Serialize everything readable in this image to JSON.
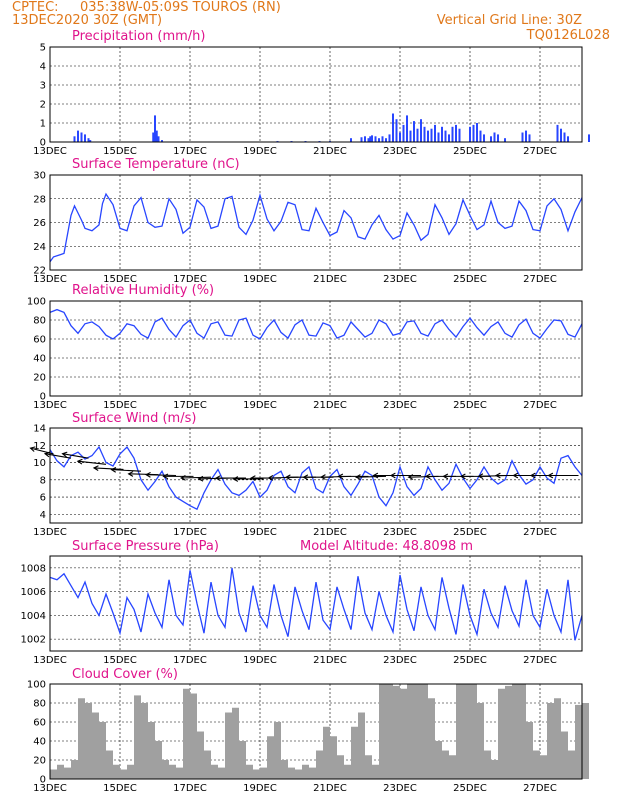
{
  "header": {
    "source": "CPTEC:",
    "location": "035:38W-05:09S   TOUROS (RN)",
    "datetime": "13DEC2020 30Z (GMT)",
    "vertical_grid": "Vertical Grid Line: 30Z",
    "code": "TQ0126L028"
  },
  "x_labels": [
    "13DEC",
    "15DEC",
    "17DEC",
    "19DEC",
    "21DEC",
    "23DEC",
    "25DEC",
    "27DEC"
  ],
  "chart_data": [
    {
      "id": "precip",
      "type": "bar",
      "title": "Precipitation (mm/h)",
      "ylim": [
        0,
        5
      ],
      "yticks": [
        0,
        1,
        2,
        3,
        4,
        5
      ],
      "color": "#2846ff",
      "series": [
        {
          "x": [
            0.7,
            0.8,
            0.9,
            1.0,
            1.1,
            1.15,
            2.95,
            3.0,
            3.05,
            3.1,
            3.2,
            6.5,
            6.9,
            7.3,
            7.7,
            8.0,
            8.6,
            8.9,
            9.0,
            9.1,
            9.15,
            9.2,
            9.3,
            9.4,
            9.5,
            9.6,
            9.7,
            9.8,
            9.9,
            10.0,
            10.1,
            10.2,
            10.3,
            10.4,
            10.5,
            10.6,
            10.7,
            10.8,
            10.9,
            11.0,
            11.1,
            11.2,
            11.3,
            11.4,
            11.5,
            11.6,
            11.7,
            12.0,
            12.1,
            12.2,
            12.3,
            12.4,
            12.6,
            12.7,
            12.8,
            13.0,
            13.5,
            13.6,
            13.7,
            14.5,
            14.6,
            14.7,
            14.8,
            15.4
          ],
          "values": [
            0.3,
            0.6,
            0.5,
            0.4,
            0.2,
            0.1,
            0.5,
            1.4,
            0.6,
            0.3,
            0.1,
            0.05,
            0.05,
            0.05,
            0.05,
            0.05,
            0.2,
            0.25,
            0.3,
            0.2,
            0.3,
            0.35,
            0.3,
            0.2,
            0.3,
            0.2,
            0.4,
            1.5,
            1.2,
            0.5,
            0.9,
            1.4,
            0.6,
            1.1,
            0.7,
            1.2,
            0.8,
            0.6,
            0.7,
            0.9,
            0.5,
            0.8,
            0.6,
            0.4,
            0.8,
            0.9,
            0.7,
            0.8,
            0.9,
            1.0,
            0.6,
            0.4,
            0.3,
            0.5,
            0.4,
            0.2,
            0.5,
            0.6,
            0.4,
            0.9,
            0.7,
            0.5,
            0.3,
            0.4
          ]
        }
      ]
    },
    {
      "id": "temp",
      "type": "line",
      "title": "Surface Temperature (nC)",
      "ylim": [
        22,
        30
      ],
      "yticks": [
        22,
        24,
        26,
        28,
        30
      ],
      "color": "#2846ff",
      "series": [
        {
          "x": [
            0,
            0.1,
            0.3,
            0.4,
            0.6,
            0.7,
            0.9,
            1.0,
            1.2,
            1.4,
            1.5,
            1.6,
            1.8,
            2.0,
            2.2,
            2.4,
            2.6,
            2.8,
            3.0,
            3.2,
            3.4,
            3.6,
            3.8,
            4.0,
            4.2,
            4.4,
            4.6,
            4.8,
            5.0,
            5.2,
            5.4,
            5.6,
            5.8,
            6.0,
            6.2,
            6.4,
            6.6,
            6.8,
            7.0,
            7.2,
            7.4,
            7.6,
            7.8,
            8.0,
            8.2,
            8.4,
            8.6,
            8.8,
            9.0,
            9.2,
            9.4,
            9.6,
            9.8,
            10.0,
            10.2,
            10.4,
            10.6,
            10.8,
            11.0,
            11.2,
            11.4,
            11.6,
            11.8,
            12.0,
            12.2,
            12.4,
            12.6,
            12.8,
            13.0,
            13.2,
            13.4,
            13.6,
            13.8,
            14.0,
            14.2,
            14.4,
            14.6,
            14.8,
            15.0,
            15.2
          ],
          "values": [
            22.7,
            23.1,
            23.3,
            23.4,
            26.6,
            27.4,
            26.2,
            25.5,
            25.3,
            25.8,
            27.6,
            28.4,
            27.5,
            25.5,
            25.3,
            27.4,
            28.1,
            26.0,
            25.6,
            25.7,
            28.0,
            27.1,
            25.1,
            25.6,
            27.9,
            27.3,
            25.5,
            25.7,
            28.0,
            28.2,
            25.6,
            25.0,
            26.2,
            28.3,
            26.3,
            25.3,
            26.1,
            27.7,
            27.5,
            25.4,
            25.3,
            27.2,
            26.0,
            24.9,
            25.2,
            27.0,
            26.4,
            24.8,
            24.6,
            25.8,
            26.6,
            25.4,
            24.6,
            24.9,
            26.8,
            25.8,
            24.5,
            25.0,
            27.5,
            26.4,
            25.0,
            25.9,
            27.9,
            26.6,
            25.4,
            25.8,
            27.8,
            26.0,
            25.5,
            25.7,
            27.8,
            27.0,
            25.4,
            25.3,
            27.4,
            28.0,
            27.1,
            25.3,
            26.9,
            28.1
          ]
        }
      ]
    },
    {
      "id": "rh",
      "type": "line",
      "title": "Relative Humidity (%)",
      "ylim": [
        0,
        100
      ],
      "yticks": [
        0,
        20,
        40,
        60,
        80,
        100
      ],
      "color": "#2846ff",
      "series": [
        {
          "x": [
            0,
            0.2,
            0.4,
            0.6,
            0.8,
            1.0,
            1.2,
            1.4,
            1.6,
            1.8,
            2.0,
            2.2,
            2.4,
            2.6,
            2.8,
            3.0,
            3.2,
            3.4,
            3.6,
            3.8,
            4.0,
            4.2,
            4.4,
            4.6,
            4.8,
            5.0,
            5.2,
            5.4,
            5.6,
            5.8,
            6.0,
            6.2,
            6.4,
            6.6,
            6.8,
            7.0,
            7.2,
            7.4,
            7.6,
            7.8,
            8.0,
            8.2,
            8.4,
            8.6,
            8.8,
            9.0,
            9.2,
            9.4,
            9.6,
            9.8,
            10.0,
            10.2,
            10.4,
            10.6,
            10.8,
            11.0,
            11.2,
            11.4,
            11.6,
            11.8,
            12.0,
            12.2,
            12.4,
            12.6,
            12.8,
            13.0,
            13.2,
            13.4,
            13.6,
            13.8,
            14.0,
            14.2,
            14.4,
            14.6,
            14.8,
            15.0,
            15.2
          ],
          "values": [
            88,
            91,
            88,
            74,
            66,
            76,
            78,
            73,
            64,
            60,
            66,
            76,
            74,
            65,
            61,
            78,
            82,
            70,
            62,
            74,
            80,
            66,
            61,
            76,
            78,
            64,
            63,
            80,
            82,
            64,
            60,
            72,
            80,
            67,
            61,
            75,
            80,
            64,
            63,
            77,
            74,
            61,
            64,
            78,
            70,
            62,
            66,
            80,
            76,
            64,
            66,
            78,
            79,
            66,
            63,
            76,
            80,
            70,
            62,
            73,
            82,
            72,
            64,
            73,
            78,
            66,
            62,
            75,
            81,
            66,
            61,
            71,
            80,
            79,
            65,
            62,
            76
          ]
        }
      ]
    },
    {
      "id": "wind",
      "type": "line",
      "title": "Surface Wind (m/s)",
      "ylim": [
        3,
        14
      ],
      "yticks": [
        4,
        6,
        8,
        10,
        12,
        14
      ],
      "color": "#2846ff",
      "series": [
        {
          "x": [
            0,
            0.2,
            0.4,
            0.6,
            0.8,
            1.0,
            1.2,
            1.4,
            1.6,
            1.8,
            2.0,
            2.2,
            2.4,
            2.6,
            2.8,
            3.0,
            3.2,
            3.4,
            3.6,
            3.8,
            4.0,
            4.2,
            4.4,
            4.6,
            4.8,
            5.0,
            5.2,
            5.4,
            5.6,
            5.8,
            6.0,
            6.2,
            6.4,
            6.6,
            6.8,
            7.0,
            7.2,
            7.4,
            7.6,
            7.8,
            8.0,
            8.2,
            8.4,
            8.6,
            8.8,
            9.0,
            9.2,
            9.4,
            9.6,
            9.8,
            10.0,
            10.2,
            10.4,
            10.6,
            10.8,
            11.0,
            11.2,
            11.4,
            11.6,
            11.8,
            12.0,
            12.2,
            12.4,
            12.6,
            12.8,
            13.0,
            13.2,
            13.4,
            13.6,
            13.8,
            14.0,
            14.2,
            14.4,
            14.6,
            14.8,
            15.0,
            15.2
          ],
          "values": [
            11.5,
            10.2,
            9.5,
            10.8,
            11.2,
            10.4,
            10.8,
            11.8,
            10.0,
            9.6,
            11.0,
            11.8,
            10.5,
            8.0,
            6.8,
            7.8,
            9.0,
            7.2,
            6.0,
            5.5,
            5.0,
            4.6,
            6.5,
            8.0,
            9.2,
            7.5,
            6.5,
            6.2,
            6.8,
            7.8,
            6.0,
            6.8,
            8.5,
            9.0,
            7.2,
            6.5,
            8.8,
            9.5,
            7.0,
            6.5,
            8.4,
            9.2,
            7.2,
            6.2,
            7.5,
            9.0,
            8.5,
            6.0,
            5.0,
            6.5,
            9.5,
            7.2,
            6.2,
            7.0,
            9.5,
            8.0,
            6.8,
            7.6,
            9.8,
            8.2,
            7.0,
            8.0,
            9.5,
            8.2,
            7.5,
            8.0,
            10.2,
            8.6,
            7.5,
            8.0,
            9.5,
            8.2,
            7.6,
            10.5,
            10.8,
            9.5,
            8.5
          ]
        }
      ],
      "vectors": {
        "x": [
          0.1,
          0.6,
          1.1,
          1.6,
          2.1,
          2.6,
          3.1,
          3.6,
          4.1,
          4.6,
          5.1,
          5.6,
          6.1,
          6.6,
          7.1,
          7.6,
          8.1,
          8.6,
          9.1,
          9.6,
          10.1,
          10.6,
          11.1,
          11.6,
          12.1,
          12.6,
          13.1,
          13.6,
          14.1,
          14.6,
          15.1
        ],
        "speed": [
          11,
          10.5,
          10.5,
          9.8,
          9.2,
          9,
          8.6,
          8.5,
          8.4,
          8.3,
          8.2,
          8.2,
          8.1,
          8.2,
          8.3,
          8.3,
          8.3,
          8.4,
          8.4,
          8.4,
          8.5,
          8.5,
          8.4,
          8.4,
          8.4,
          8.4,
          8.5,
          8.5,
          8.5,
          8.5,
          8.5
        ],
        "dir_deg": [
          140,
          150,
          150,
          160,
          170,
          170,
          175,
          175,
          180,
          185,
          185,
          180,
          180,
          180,
          185,
          180,
          180,
          185,
          180,
          185,
          180,
          180,
          185,
          180,
          180,
          180,
          185,
          180,
          180,
          180,
          180
        ]
      }
    },
    {
      "id": "press",
      "type": "line",
      "title": "Surface Pressure (hPa)",
      "subtitle": "Model Altitude: 48.8098  m",
      "ylim": [
        1001,
        1009
      ],
      "yticks": [
        1002,
        1004,
        1006,
        1008
      ],
      "color": "#2846ff",
      "series": [
        {
          "x": [
            0,
            0.2,
            0.4,
            0.6,
            0.8,
            1.0,
            1.2,
            1.4,
            1.6,
            1.8,
            2.0,
            2.2,
            2.4,
            2.6,
            2.8,
            3.0,
            3.2,
            3.4,
            3.6,
            3.8,
            4.0,
            4.2,
            4.4,
            4.6,
            4.8,
            5.0,
            5.2,
            5.4,
            5.6,
            5.8,
            6.0,
            6.2,
            6.4,
            6.6,
            6.8,
            7.0,
            7.2,
            7.4,
            7.6,
            7.8,
            8.0,
            8.2,
            8.4,
            8.6,
            8.8,
            9.0,
            9.2,
            9.4,
            9.6,
            9.8,
            10.0,
            10.2,
            10.4,
            10.6,
            10.8,
            11.0,
            11.2,
            11.4,
            11.6,
            11.8,
            12.0,
            12.2,
            12.4,
            12.6,
            12.8,
            13.0,
            13.2,
            13.4,
            13.6,
            13.8,
            14.0,
            14.2,
            14.4,
            14.6,
            14.8,
            15.0,
            15.2
          ],
          "values": [
            1007.2,
            1007.0,
            1007.5,
            1006.5,
            1005.5,
            1006.8,
            1005.0,
            1004.0,
            1005.8,
            1004.2,
            1002.5,
            1005.5,
            1004.5,
            1002.6,
            1005.8,
            1004.2,
            1003.0,
            1007.0,
            1004.0,
            1003.2,
            1007.8,
            1005.0,
            1002.5,
            1006.8,
            1004.0,
            1003.0,
            1008.0,
            1004.2,
            1002.6,
            1006.5,
            1004.0,
            1003.0,
            1006.6,
            1004.0,
            1002.2,
            1006.4,
            1004.4,
            1002.8,
            1006.8,
            1003.6,
            1002.8,
            1006.4,
            1004.5,
            1002.8,
            1007.3,
            1004.2,
            1002.8,
            1006.0,
            1004.0,
            1002.6,
            1007.4,
            1004.5,
            1002.7,
            1006.4,
            1004.0,
            1002.8,
            1007.2,
            1004.6,
            1002.4,
            1006.6,
            1004.0,
            1002.4,
            1006.2,
            1004.2,
            1003.0,
            1006.5,
            1004.4,
            1003.1,
            1007.0,
            1004.0,
            1003.0,
            1006.2,
            1004.0,
            1002.6,
            1007.0,
            1001.9,
            1004.0
          ]
        }
      ]
    },
    {
      "id": "cloud",
      "type": "area",
      "title": "Cloud Cover (%)",
      "ylim": [
        0,
        100
      ],
      "yticks": [
        0,
        20,
        40,
        60,
        80,
        100
      ],
      "color": "#a0a0a0",
      "series": [
        {
          "x": [
            0,
            0.2,
            0.4,
            0.6,
            0.8,
            1.0,
            1.2,
            1.4,
            1.6,
            1.8,
            2.0,
            2.2,
            2.4,
            2.6,
            2.8,
            3.0,
            3.2,
            3.4,
            3.6,
            3.8,
            4.0,
            4.2,
            4.4,
            4.6,
            4.8,
            5.0,
            5.2,
            5.4,
            5.6,
            5.8,
            6.0,
            6.2,
            6.4,
            6.6,
            6.8,
            7.0,
            7.2,
            7.4,
            7.6,
            7.8,
            8.0,
            8.2,
            8.4,
            8.6,
            8.8,
            9.0,
            9.2,
            9.4,
            9.6,
            9.8,
            10.0,
            10.2,
            10.4,
            10.6,
            10.8,
            11.0,
            11.2,
            11.4,
            11.6,
            11.8,
            12.0,
            12.2,
            12.4,
            12.6,
            12.8,
            13.0,
            13.2,
            13.4,
            13.6,
            13.8,
            14.0,
            14.2,
            14.4,
            14.6,
            14.8,
            15.0,
            15.2
          ],
          "values": [
            10,
            15,
            12,
            20,
            85,
            80,
            70,
            60,
            30,
            15,
            10,
            15,
            88,
            80,
            60,
            40,
            20,
            15,
            12,
            95,
            90,
            50,
            30,
            15,
            12,
            70,
            75,
            40,
            15,
            10,
            12,
            45,
            60,
            20,
            12,
            10,
            15,
            12,
            30,
            55,
            45,
            25,
            15,
            55,
            70,
            25,
            15,
            100,
            100,
            98,
            95,
            100,
            100,
            100,
            85,
            40,
            30,
            25,
            100,
            100,
            100,
            80,
            30,
            20,
            95,
            98,
            100,
            100,
            60,
            30,
            25,
            80,
            85,
            50,
            30,
            78,
            80
          ]
        }
      ]
    }
  ]
}
